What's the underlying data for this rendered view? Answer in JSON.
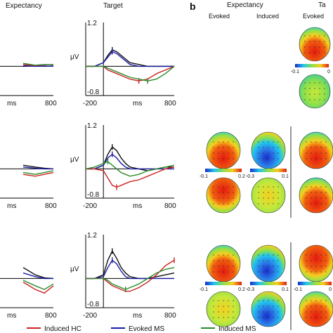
{
  "panel_b_label": "b",
  "col_titles": {
    "expectancy_a": "Expectancy",
    "target_a": "Target",
    "expectancy_b": "Expectancy",
    "target_b": "Ta"
  },
  "sub_titles": {
    "evoked": "Evoked",
    "induced": "Induced",
    "evoked2": "Evoked"
  },
  "axis_text": {
    "ylabel": "μV",
    "xlabel": "ms",
    "ytop": "1.2",
    "ybottom": "-0.8",
    "xleft": "-200",
    "xright": "800"
  },
  "colorbar_labels": {
    "top_right": [
      "-0.1",
      "0"
    ],
    "row2_evoked": [
      "-0.1",
      "0.2"
    ],
    "row2_induced": [
      "-0.3",
      "0.1"
    ],
    "row3_evoked": [
      "-0.1",
      "0.2"
    ],
    "row3_induced": [
      "-0.3",
      "0.1"
    ],
    "row3_right": [
      "-0.1",
      "0"
    ]
  },
  "legend": [
    {
      "name": "Induced HC",
      "color": "#cc2222"
    },
    {
      "name": "Evoked MS",
      "color": "#1a1aa8"
    },
    {
      "name": "Induced MS",
      "color": "#2a8a2a"
    }
  ],
  "colors": {
    "evoked_hc": "#111111",
    "induced_hc": "#cc2222",
    "evoked_ms": "#1a1aa8",
    "induced_ms": "#2a8a2a",
    "zero_line": "#000000"
  },
  "chart_data": [
    {
      "type": "line",
      "title": "Target",
      "row": 1,
      "xlabel": "ms",
      "ylabel": "μV",
      "xlim": [
        -200,
        800
      ],
      "ylim": [
        -0.8,
        1.2
      ],
      "series": [
        {
          "color_key": "evoked_hc",
          "x": [
            -200,
            -100,
            0,
            50,
            100,
            150,
            200,
            250,
            300,
            400,
            500,
            600,
            700,
            800
          ],
          "y": [
            0,
            0,
            0.1,
            0.3,
            0.45,
            0.4,
            0.3,
            0.2,
            0.1,
            0.05,
            0,
            0,
            0,
            0
          ]
        },
        {
          "color_key": "evoked_ms",
          "x": [
            -200,
            -100,
            0,
            50,
            100,
            150,
            200,
            250,
            300,
            400,
            500,
            600,
            700,
            800
          ],
          "y": [
            0,
            0,
            0.1,
            0.25,
            0.4,
            0.35,
            0.25,
            0.15,
            0.05,
            0,
            0,
            0,
            0,
            0
          ]
        },
        {
          "color_key": "induced_hc",
          "x": [
            -200,
            -100,
            0,
            50,
            100,
            150,
            200,
            250,
            300,
            400,
            500,
            600,
            700,
            800
          ],
          "y": [
            0,
            0,
            0,
            -0.1,
            -0.15,
            -0.2,
            -0.25,
            -0.3,
            -0.35,
            -0.4,
            -0.35,
            -0.2,
            -0.1,
            0
          ]
        },
        {
          "color_key": "induced_ms",
          "x": [
            -200,
            -100,
            0,
            50,
            100,
            150,
            200,
            250,
            300,
            400,
            500,
            600,
            700,
            800
          ],
          "y": [
            0,
            0,
            0,
            -0.05,
            -0.1,
            -0.15,
            -0.2,
            -0.25,
            -0.3,
            -0.35,
            -0.4,
            -0.35,
            -0.2,
            0
          ]
        }
      ]
    },
    {
      "type": "line",
      "title": "",
      "row": 2,
      "xlabel": "ms",
      "ylabel": "μV",
      "xlim": [
        -200,
        800
      ],
      "ylim": [
        -0.8,
        1.2
      ],
      "series": [
        {
          "color_key": "evoked_hc",
          "x": [
            -200,
            -100,
            0,
            50,
            100,
            150,
            200,
            250,
            300,
            400,
            500,
            600,
            700,
            800
          ],
          "y": [
            0,
            0,
            0.1,
            0.4,
            0.6,
            0.5,
            0.3,
            0.15,
            0.05,
            0,
            -0.05,
            0,
            0.05,
            0.05
          ]
        },
        {
          "color_key": "evoked_ms",
          "x": [
            -200,
            -100,
            0,
            50,
            100,
            150,
            200,
            250,
            300,
            400,
            500,
            600,
            700,
            800
          ],
          "y": [
            0,
            0,
            0.1,
            0.3,
            0.4,
            0.3,
            0.15,
            0.05,
            0,
            0,
            0,
            0,
            0,
            0
          ]
        },
        {
          "color_key": "induced_hc",
          "x": [
            -200,
            -100,
            0,
            50,
            100,
            150,
            200,
            250,
            300,
            400,
            500,
            600,
            700,
            800
          ],
          "y": [
            0,
            0,
            -0.05,
            -0.25,
            -0.45,
            -0.5,
            -0.45,
            -0.4,
            -0.35,
            -0.3,
            -0.2,
            -0.1,
            0,
            0.05
          ]
        },
        {
          "color_key": "induced_ms",
          "x": [
            -200,
            -100,
            0,
            50,
            100,
            150,
            200,
            250,
            300,
            400,
            500,
            600,
            700,
            800
          ],
          "y": [
            0,
            0.05,
            0.15,
            0.2,
            0.1,
            0,
            -0.1,
            -0.15,
            -0.2,
            -0.15,
            -0.05,
            0,
            0.05,
            0.1
          ]
        }
      ]
    },
    {
      "type": "line",
      "title": "",
      "row": 3,
      "xlabel": "ms",
      "ylabel": "μV",
      "xlim": [
        -200,
        800
      ],
      "ylim": [
        -0.8,
        1.2
      ],
      "series": [
        {
          "color_key": "evoked_hc",
          "x": [
            -200,
            -100,
            0,
            50,
            100,
            150,
            200,
            250,
            300,
            400,
            500,
            600,
            700,
            800
          ],
          "y": [
            0,
            0,
            0.1,
            0.5,
            0.75,
            0.55,
            0.3,
            0.15,
            0.05,
            0,
            0,
            0.05,
            0.1,
            0.15
          ]
        },
        {
          "color_key": "evoked_ms",
          "x": [
            -200,
            -100,
            0,
            50,
            100,
            150,
            200,
            250,
            300,
            400,
            500,
            600,
            700,
            800
          ],
          "y": [
            0,
            0,
            0.05,
            0.3,
            0.5,
            0.4,
            0.2,
            0.05,
            0,
            0,
            0,
            0,
            0,
            0
          ]
        },
        {
          "color_key": "induced_hc",
          "x": [
            -200,
            -100,
            0,
            50,
            100,
            150,
            200,
            250,
            300,
            400,
            500,
            600,
            700,
            800
          ],
          "y": [
            0,
            0,
            0,
            -0.1,
            -0.2,
            -0.25,
            -0.3,
            -0.35,
            -0.35,
            -0.25,
            -0.1,
            0.1,
            0.35,
            0.5
          ]
        },
        {
          "color_key": "induced_ms",
          "x": [
            -200,
            -100,
            0,
            50,
            100,
            150,
            200,
            250,
            300,
            400,
            500,
            600,
            700,
            800
          ],
          "y": [
            0,
            0,
            0,
            -0.05,
            -0.15,
            -0.2,
            -0.25,
            -0.3,
            -0.25,
            -0.15,
            0,
            0.15,
            0.25,
            0.3
          ]
        }
      ]
    },
    {
      "type": "line",
      "title": "Expectancy",
      "row": 1,
      "panel": "left-cropped",
      "xlabel": "ms",
      "xlim": [
        -200,
        800
      ],
      "series": [
        {
          "color_key": "evoked_hc",
          "x": [
            300,
            500,
            650,
            800
          ],
          "y": [
            0,
            0.02,
            0,
            0.01
          ]
        },
        {
          "color_key": "evoked_ms",
          "x": [
            300,
            500,
            650,
            800
          ],
          "y": [
            0.02,
            0,
            0.01,
            0
          ]
        },
        {
          "color_key": "induced_hc",
          "x": [
            300,
            500,
            650,
            800
          ],
          "y": [
            0.05,
            0.02,
            0.04,
            0.05
          ]
        },
        {
          "color_key": "induced_ms",
          "x": [
            300,
            500,
            650,
            800
          ],
          "y": [
            0.08,
            0.03,
            0.05,
            0.04
          ]
        }
      ]
    },
    {
      "type": "line",
      "title": "",
      "row": 2,
      "panel": "left-cropped",
      "xlabel": "ms",
      "xlim": [
        -200,
        800
      ],
      "series": [
        {
          "color_key": "evoked_hc",
          "x": [
            300,
            500,
            650,
            800
          ],
          "y": [
            0.1,
            0.05,
            0.02,
            0
          ]
        },
        {
          "color_key": "evoked_ms",
          "x": [
            300,
            500,
            650,
            800
          ],
          "y": [
            0.05,
            0.02,
            0,
            0
          ]
        },
        {
          "color_key": "induced_hc",
          "x": [
            300,
            500,
            650,
            800
          ],
          "y": [
            -0.15,
            -0.2,
            -0.15,
            -0.1
          ]
        },
        {
          "color_key": "induced_ms",
          "x": [
            300,
            500,
            650,
            800
          ],
          "y": [
            -0.1,
            -0.15,
            -0.1,
            -0.05
          ]
        }
      ]
    },
    {
      "type": "line",
      "title": "",
      "row": 3,
      "panel": "left-cropped",
      "xlabel": "ms",
      "xlim": [
        -200,
        800
      ],
      "series": [
        {
          "color_key": "evoked_hc",
          "x": [
            300,
            500,
            650,
            800
          ],
          "y": [
            0.3,
            0.1,
            0.02,
            0
          ]
        },
        {
          "color_key": "evoked_ms",
          "x": [
            300,
            500,
            650,
            800
          ],
          "y": [
            0.15,
            0.05,
            0,
            0
          ]
        },
        {
          "color_key": "induced_hc",
          "x": [
            300,
            500,
            650,
            800
          ],
          "y": [
            -0.1,
            -0.3,
            -0.4,
            -0.2
          ]
        },
        {
          "color_key": "induced_ms",
          "x": [
            300,
            500,
            650,
            800
          ],
          "y": [
            -0.05,
            -0.2,
            -0.3,
            -0.15
          ]
        }
      ]
    }
  ]
}
